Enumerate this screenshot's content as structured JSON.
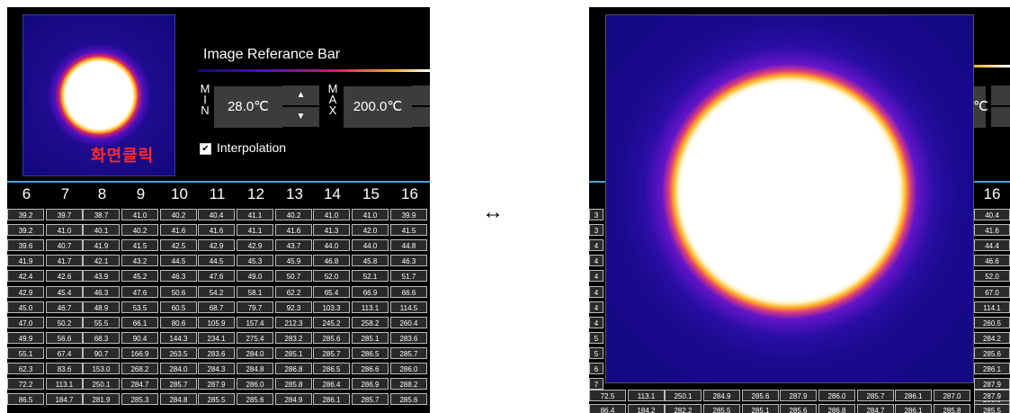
{
  "left": {
    "thumb_text": "화면클릭",
    "ref_title": "Image Referance Bar",
    "min_label": "M I N",
    "max_label": "M A X",
    "min_value": "28.0℃",
    "max_value": "200.0℃",
    "up_glyph": "▲",
    "down_glyph": "▼",
    "checkbox_mark": "✔",
    "interpolation_label": "Interpolation",
    "columns": [
      "6",
      "7",
      "8",
      "9",
      "10",
      "11",
      "12",
      "13",
      "14",
      "15",
      "16"
    ],
    "rows": [
      [
        "39.2",
        "39.7",
        "38.7",
        "41.0",
        "40.2",
        "40.4",
        "41.1",
        "40.2",
        "41.0",
        "41.0",
        "39.9"
      ],
      [
        "39.2",
        "41.0",
        "40.1",
        "40.2",
        "41.6",
        "41.6",
        "41.1",
        "41.6",
        "41.3",
        "42.0",
        "41.5"
      ],
      [
        "39.6",
        "40.7",
        "41.9",
        "41.5",
        "42.5",
        "42.9",
        "42.9",
        "43.7",
        "44.0",
        "44.0",
        "44.8"
      ],
      [
        "41.9",
        "41.7",
        "42.1",
        "43.2",
        "44.5",
        "44.5",
        "45.3",
        "45.9",
        "46.8",
        "45.8",
        "46.3"
      ],
      [
        "42.4",
        "42.6",
        "43.9",
        "45.2",
        "46.3",
        "47.6",
        "49.0",
        "50.7",
        "52.0",
        "52.1",
        "51.7"
      ],
      [
        "42.9",
        "45.4",
        "46.3",
        "47.6",
        "50.6",
        "54.2",
        "58.1",
        "62.2",
        "65.4",
        "66.9",
        "66.6"
      ],
      [
        "45.0",
        "46.7",
        "48.9",
        "53.5",
        "60.5",
        "68.7",
        "79.7",
        "92.3",
        "103.3",
        "113.1",
        "114.5"
      ],
      [
        "47.0",
        "50.2",
        "55.5",
        "66.1",
        "80.6",
        "105.9",
        "157.4",
        "212.3",
        "245.2",
        "258.2",
        "260.4"
      ],
      [
        "49.9",
        "56.6",
        "68.3",
        "90.4",
        "144.3",
        "234.1",
        "275.4",
        "283.2",
        "285.6",
        "285.1",
        "283.6"
      ],
      [
        "55.1",
        "67.4",
        "90.7",
        "166.9",
        "263.5",
        "283.6",
        "284.0",
        "285.1",
        "285.7",
        "286.5",
        "285.7"
      ],
      [
        "62.3",
        "83.6",
        "153.0",
        "268.2",
        "284.0",
        "284.3",
        "284.8",
        "286.8",
        "286.5",
        "286.6",
        "286.0"
      ],
      [
        "72.2",
        "113.1",
        "250.1",
        "284.7",
        "285.7",
        "287.9",
        "286.0",
        "285.8",
        "286.4",
        "286.9",
        "288.2"
      ],
      [
        "86.5",
        "184.7",
        "281.9",
        "285.3",
        "284.8",
        "285.5",
        "285.6",
        "284.9",
        "286.1",
        "285.7",
        "285.6"
      ]
    ]
  },
  "arrow": "↔",
  "right": {
    "col_16": "16",
    "c_fragment": "℃",
    "right_col_values": [
      "40.4",
      "41.6",
      "44.4",
      "46.6",
      "52.0",
      "67.0",
      "114.1",
      "260.5",
      "284.2",
      "285.6",
      "286.1",
      "287.9",
      "285.5"
    ],
    "left_col_fragments": [
      "3",
      "3",
      "4",
      "4",
      "4",
      "4",
      "4",
      "4",
      "5",
      "5",
      "6",
      "7"
    ],
    "row_13_values": [
      "86.4",
      "184.2",
      "282.2",
      "285.5",
      "285.1",
      "285.6",
      "286.8",
      "284.7",
      "286.1",
      "285.8",
      "285.5"
    ],
    "row_12_partial": [
      "72.5",
      "113.1",
      "250.1",
      "284.9",
      "285.6",
      "287.9",
      "286.0",
      "285.7",
      "286.1",
      "287.0",
      "287.9"
    ]
  }
}
